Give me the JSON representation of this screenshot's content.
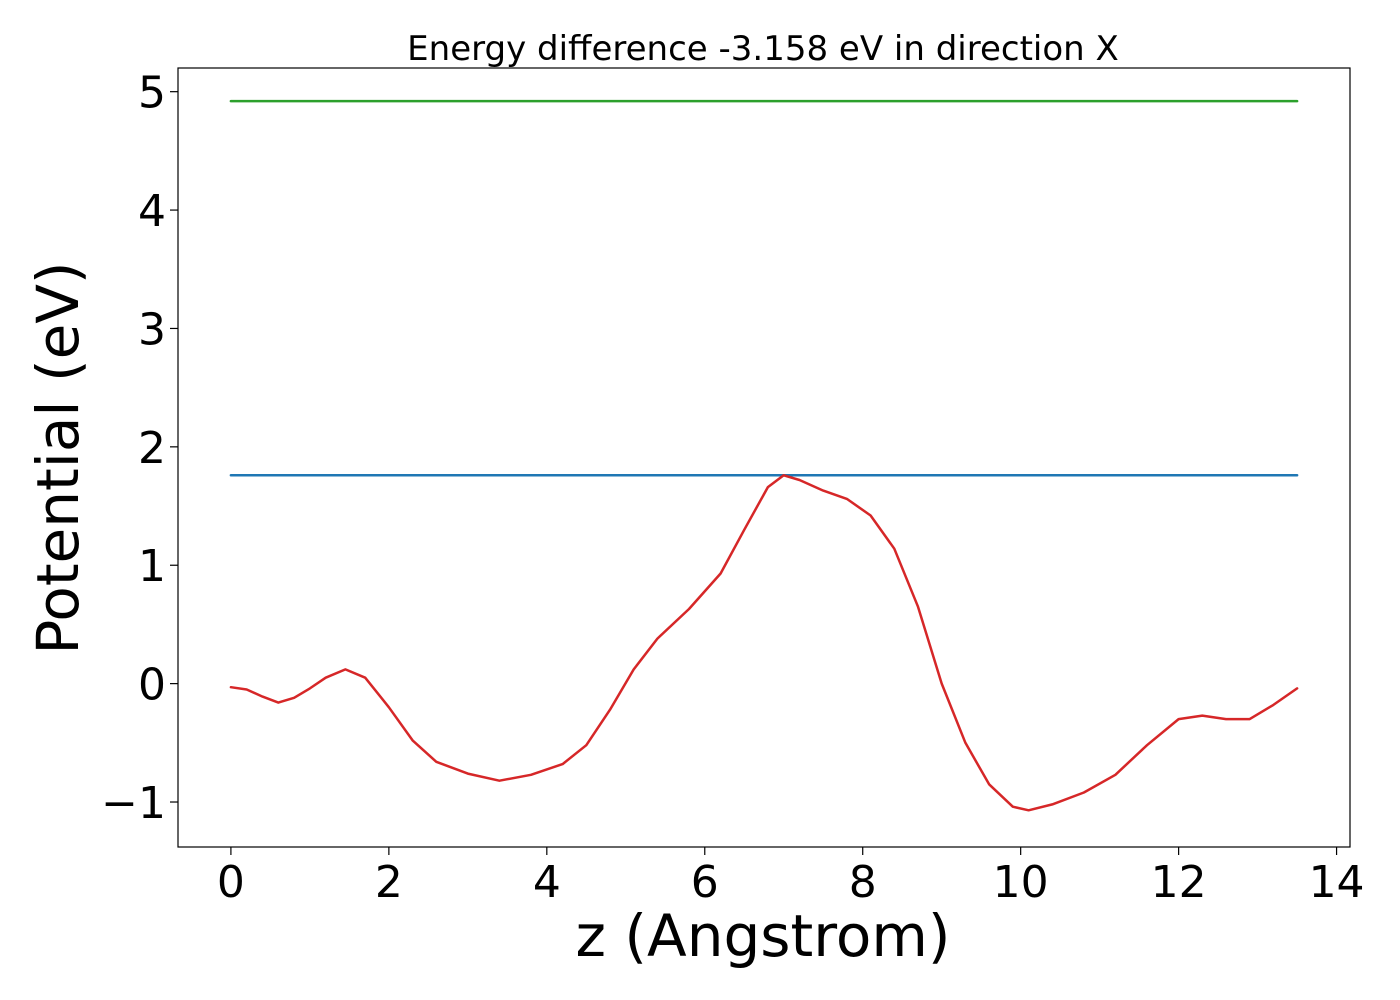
{
  "chart_data": {
    "type": "line",
    "title": "Energy difference -3.158 eV in direction X",
    "xlabel": "z (Angstrom)",
    "ylabel": "Potential (eV)",
    "xlim": [
      -0.67,
      14.17
    ],
    "ylim": [
      -1.38,
      5.2
    ],
    "xticks": [
      0,
      2,
      4,
      6,
      8,
      10,
      12,
      14
    ],
    "yticks": [
      -1,
      0,
      1,
      2,
      3,
      4,
      5
    ],
    "xtick_labels": [
      "0",
      "2",
      "4",
      "6",
      "8",
      "10",
      "12",
      "14"
    ],
    "ytick_labels": [
      "−1",
      "0",
      "1",
      "2",
      "3",
      "4",
      "5"
    ],
    "grid": false,
    "series": [
      {
        "color": "#2ca02c",
        "x": [
          0,
          13.5
        ],
        "y": [
          4.92,
          4.92
        ]
      },
      {
        "color": "#1f77b4",
        "x": [
          0,
          13.5
        ],
        "y": [
          1.76,
          1.76
        ]
      },
      {
        "color": "#d62728",
        "x": [
          0,
          0.2,
          0.4,
          0.6,
          0.8,
          1.0,
          1.2,
          1.45,
          1.7,
          2.0,
          2.3,
          2.6,
          3.0,
          3.4,
          3.8,
          4.2,
          4.5,
          4.8,
          5.1,
          5.4,
          5.8,
          6.2,
          6.5,
          6.8,
          7.0,
          7.2,
          7.5,
          7.8,
          8.1,
          8.4,
          8.7,
          9.0,
          9.3,
          9.6,
          9.9,
          10.1,
          10.4,
          10.8,
          11.2,
          11.6,
          12.0,
          12.3,
          12.6,
          12.9,
          13.2,
          13.5
        ],
        "y": [
          -0.03,
          -0.05,
          -0.11,
          -0.16,
          -0.12,
          -0.04,
          0.05,
          0.12,
          0.05,
          -0.2,
          -0.48,
          -0.66,
          -0.76,
          -0.82,
          -0.77,
          -0.68,
          -0.52,
          -0.22,
          0.12,
          0.38,
          0.63,
          0.93,
          1.3,
          1.66,
          1.76,
          1.72,
          1.63,
          1.56,
          1.42,
          1.14,
          0.65,
          0.0,
          -0.5,
          -0.85,
          -1.04,
          -1.07,
          -1.02,
          -0.92,
          -0.77,
          -0.52,
          -0.3,
          -0.27,
          -0.3,
          -0.3,
          -0.18,
          -0.04
        ]
      }
    ]
  }
}
